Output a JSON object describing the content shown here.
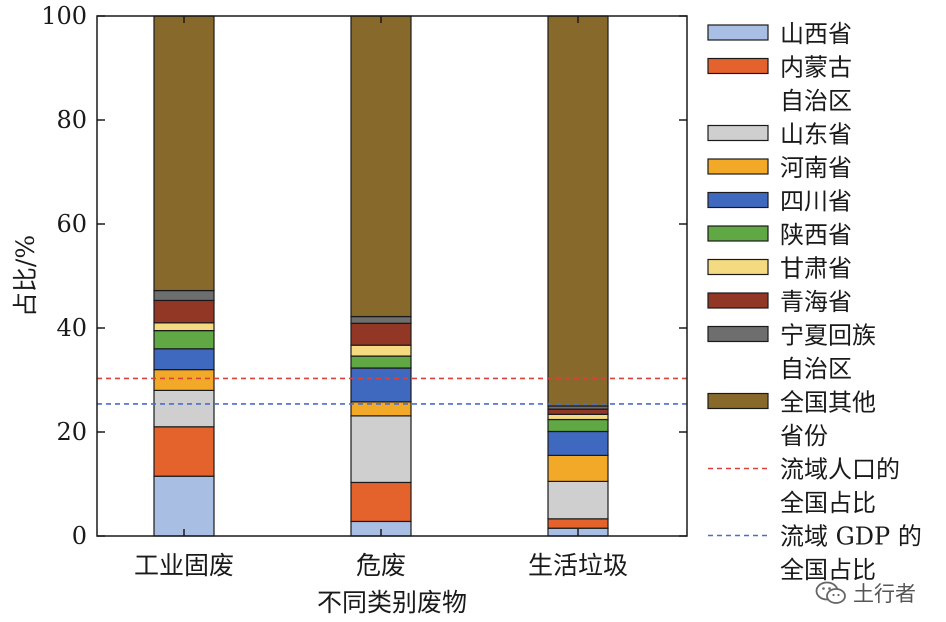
{
  "chart_data": {
    "type": "bar",
    "stacked": true,
    "categories": [
      "工业固废",
      "危废",
      "生活垃圾"
    ],
    "xlabel": "不同类别废物",
    "ylabel": "占比/%",
    "ylim": [
      0,
      100
    ],
    "yticks": [
      0,
      20,
      40,
      60,
      80,
      100
    ],
    "grid": false,
    "legend_position": "right",
    "series": [
      {
        "name": "山西省",
        "color": "#a8bfe3",
        "values": [
          11.5,
          2.8,
          1.5
        ]
      },
      {
        "name": "内蒙古自治区",
        "legend_lines": [
          "内蒙古",
          "自治区"
        ],
        "color": "#e4622b",
        "values": [
          9.5,
          7.5,
          1.8
        ]
      },
      {
        "name": "山东省",
        "color": "#cfcfcf",
        "values": [
          7.0,
          12.8,
          7.2
        ]
      },
      {
        "name": "河南省",
        "color": "#f3a928",
        "values": [
          4.0,
          2.7,
          5.0
        ]
      },
      {
        "name": "四川省",
        "color": "#3f68bf",
        "values": [
          4.0,
          6.5,
          4.6
        ]
      },
      {
        "name": "陕西省",
        "color": "#5fa844",
        "values": [
          3.5,
          2.3,
          2.3
        ]
      },
      {
        "name": "甘肃省",
        "color": "#f4db82",
        "values": [
          1.5,
          2.1,
          1.0
        ]
      },
      {
        "name": "青海省",
        "color": "#923726",
        "values": [
          4.3,
          4.2,
          1.0
        ]
      },
      {
        "name": "宁夏回族自治区",
        "legend_lines": [
          "宁夏回族",
          "自治区"
        ],
        "color": "#6e6e6e",
        "values": [
          1.9,
          1.3,
          0.6
        ]
      },
      {
        "name": "全国其他省份",
        "legend_lines": [
          "全国其他",
          "省份"
        ],
        "color": "#876a2b",
        "values": [
          52.8,
          57.8,
          75.0
        ]
      }
    ],
    "reference_lines": [
      {
        "name": "流域人口的全国占比",
        "legend_lines": [
          "流域人口的",
          "全国占比"
        ],
        "color": "#d9413c",
        "style": "dashed",
        "value": 30.3
      },
      {
        "name": "流域 GDP 的全国占比",
        "legend_lines": [
          "流域 GDP 的",
          "全国占比"
        ],
        "color": "#4a6fc9",
        "style": "dashed",
        "value": 25.4
      }
    ]
  },
  "watermark": {
    "icon": "wechat-icon",
    "text": "土行者"
  }
}
